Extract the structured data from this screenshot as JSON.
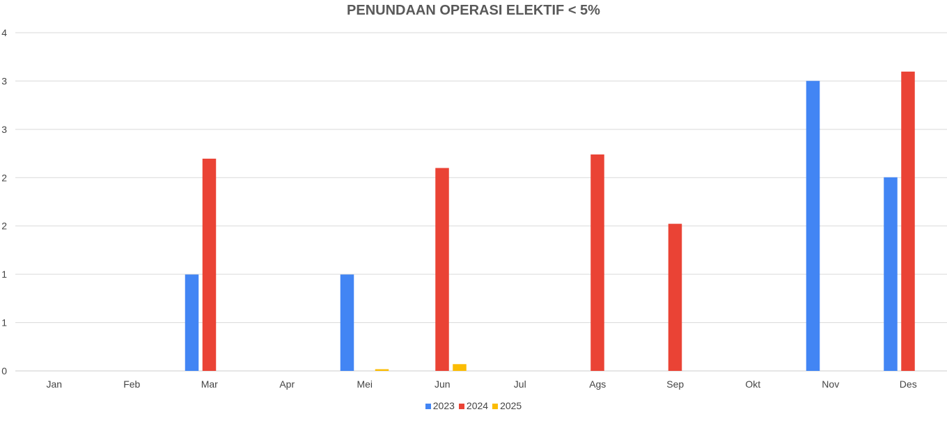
{
  "chart_data": {
    "type": "bar",
    "title": "PENUNDAAN OPERASI ELEKTIF < 5%",
    "xlabel": "",
    "ylabel": "",
    "categories": [
      "Jan",
      "Feb",
      "Mar",
      "Apr",
      "Mei",
      "Jun",
      "Jul",
      "Ags",
      "Sep",
      "Okt",
      "Nov",
      "Des"
    ],
    "ylim": [
      0,
      4
    ],
    "ytick_values": [
      0,
      0.571,
      1.143,
      1.714,
      2.286,
      2.857,
      3.429,
      4
    ],
    "ytick_labels": [
      "0",
      "1",
      "1",
      "2",
      "2",
      "3",
      "3",
      "4"
    ],
    "grid": true,
    "legend": "bottom",
    "series": [
      {
        "name": "2023",
        "color": "#4285f4",
        "values": [
          0,
          0,
          1.14,
          0,
          1.14,
          0,
          0,
          0,
          0,
          0,
          3.43,
          2.29
        ]
      },
      {
        "name": "2024",
        "color": "#ea4335",
        "values": [
          0,
          0,
          2.51,
          0,
          0,
          2.4,
          0,
          2.56,
          1.74,
          0,
          0,
          3.54
        ]
      },
      {
        "name": "2025",
        "color": "#fbbc04",
        "values": [
          0,
          0,
          0,
          0,
          0.02,
          0.08,
          0,
          0,
          0,
          0,
          0,
          0
        ]
      }
    ]
  }
}
